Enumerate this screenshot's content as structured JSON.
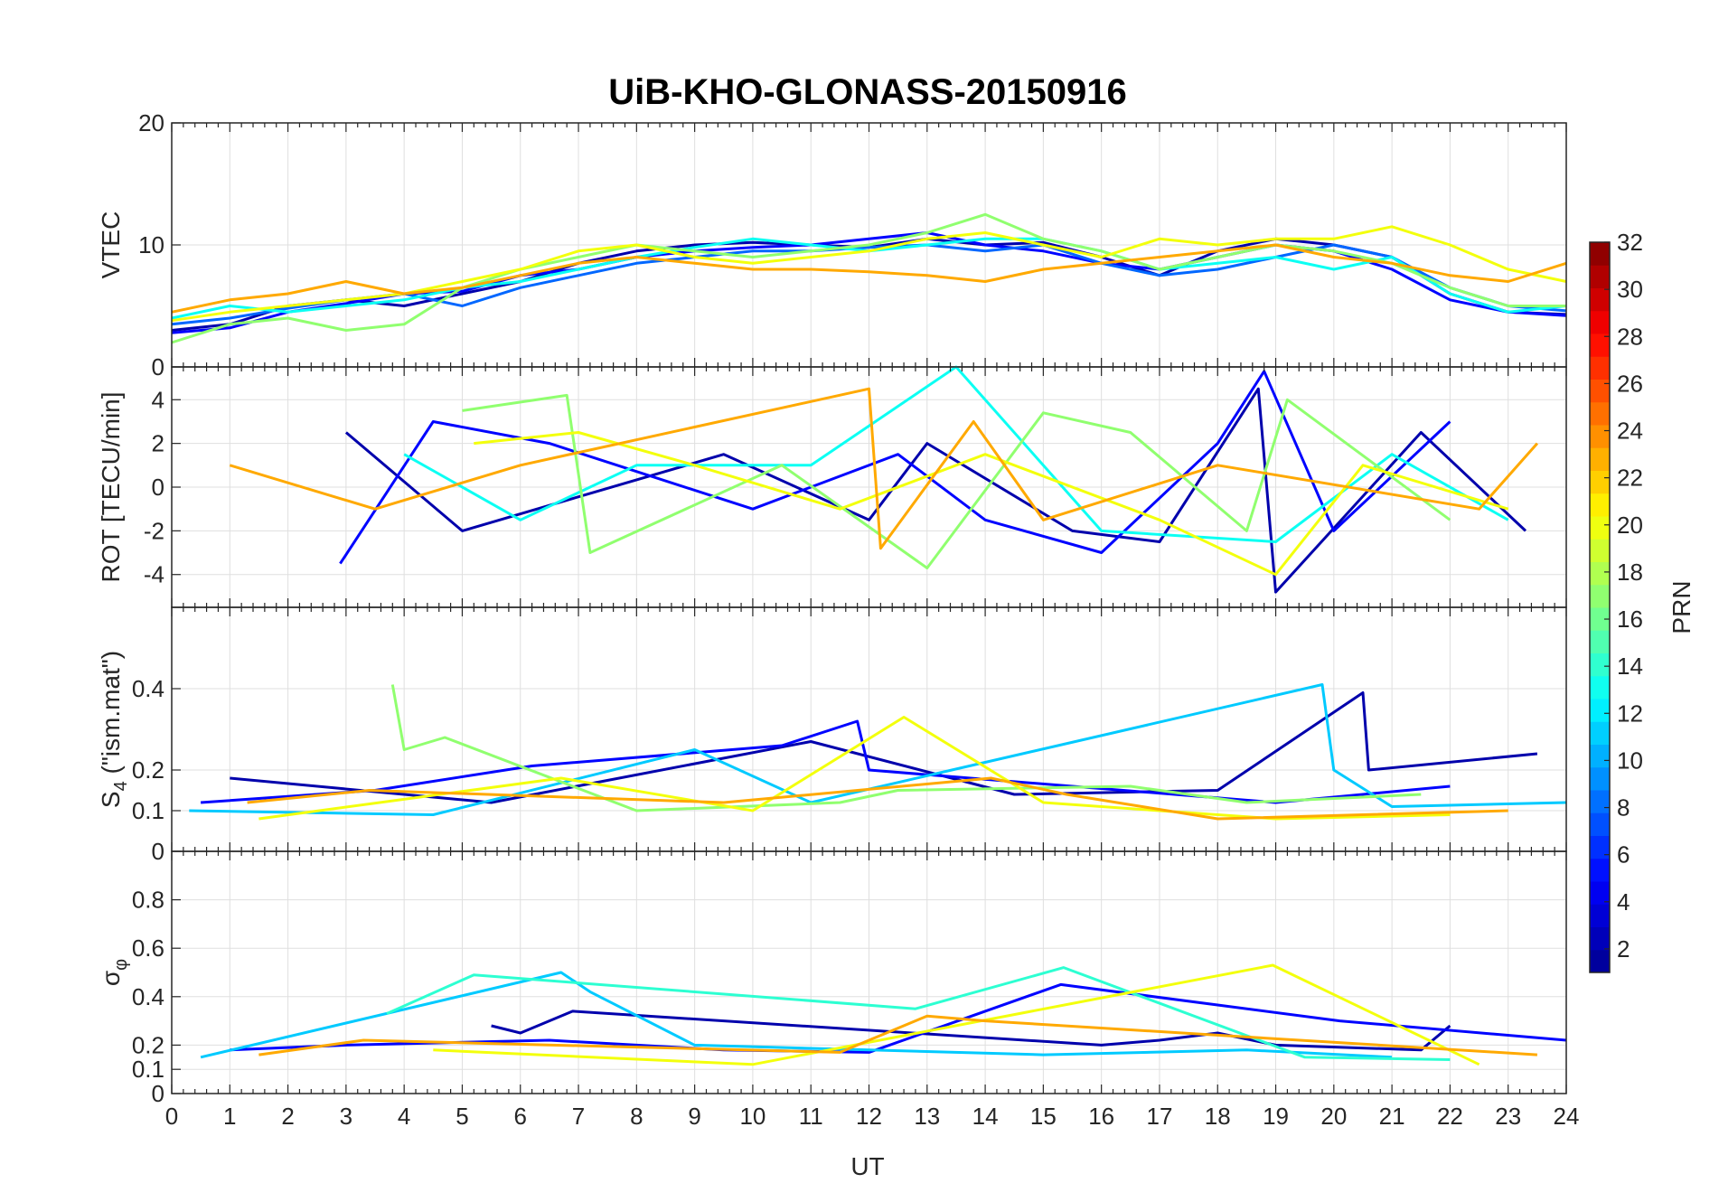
{
  "chart_data": {
    "type": "line",
    "title": "UiB-KHO-GLONASS-20150916",
    "xlabel": "UT",
    "xlim": [
      0,
      24
    ],
    "x_ticks": [
      "0",
      "1",
      "2",
      "3",
      "4",
      "5",
      "6",
      "7",
      "8",
      "9",
      "10",
      "11",
      "12",
      "13",
      "14",
      "15",
      "16",
      "17",
      "18",
      "19",
      "20",
      "21",
      "22",
      "23",
      "24"
    ],
    "grid": true,
    "colorbar": {
      "label": "PRN",
      "range": [
        1,
        32
      ],
      "colormap": "jet",
      "tick_labels": [
        "2",
        "4",
        "6",
        "8",
        "10",
        "12",
        "14",
        "16",
        "18",
        "20",
        "22",
        "24",
        "26",
        "28",
        "30",
        "32"
      ],
      "colors": [
        "#00008f",
        "#0000ff",
        "#0080ff",
        "#00ffff",
        "#80ff80",
        "#ffff00",
        "#ff8000",
        "#ff0000",
        "#800000"
      ]
    },
    "panels": [
      {
        "id": "vtec",
        "ylabel": "VTEC",
        "ylim": [
          0,
          20
        ],
        "y_ticks": [
          "0",
          "10",
          "20"
        ],
        "series": [
          {
            "prn": 2,
            "x": [
              0,
              1,
              2,
              3,
              4,
              5,
              6,
              7,
              8,
              9,
              10,
              11,
              12,
              13,
              14,
              15,
              16,
              17,
              18,
              19,
              20,
              21,
              22,
              23,
              24
            ],
            "y": [
              3.0,
              3.5,
              5.0,
              5.5,
              5.0,
              6.0,
              7.0,
              8.5,
              9.5,
              10.0,
              10.2,
              10.0,
              9.8,
              10.5,
              10.0,
              10.2,
              9.0,
              7.5,
              9.5,
              10.5,
              10.0,
              9.0,
              6.0,
              4.5,
              4.3
            ]
          },
          {
            "prn": 5,
            "x": [
              0,
              1,
              2,
              3,
              4,
              5,
              6,
              7,
              8,
              9,
              10,
              11,
              12,
              13,
              14,
              15,
              16,
              17,
              18,
              19,
              20,
              21,
              22,
              23,
              24
            ],
            "y": [
              2.8,
              3.2,
              4.5,
              5.2,
              6.0,
              6.2,
              7.5,
              8.0,
              9.0,
              9.5,
              9.8,
              10.0,
              10.5,
              11.0,
              10.0,
              9.5,
              8.5,
              8.0,
              9.0,
              10.0,
              9.5,
              8.0,
              5.5,
              4.5,
              4.2
            ]
          },
          {
            "prn": 8,
            "x": [
              0,
              1,
              2,
              3,
              4,
              5,
              6,
              7,
              8,
              9,
              10,
              11,
              12,
              13,
              14,
              15,
              16,
              17,
              18,
              19,
              20,
              21,
              22,
              23,
              24
            ],
            "y": [
              3.5,
              4.0,
              4.8,
              5.5,
              6.0,
              5.0,
              6.5,
              7.5,
              8.5,
              9.0,
              9.5,
              9.5,
              9.8,
              10.0,
              9.5,
              10.0,
              8.5,
              7.5,
              8.0,
              9.0,
              10.0,
              9.0,
              6.5,
              5.0,
              4.6
            ]
          },
          {
            "prn": 13,
            "x": [
              0,
              1,
              2,
              3,
              4,
              5,
              6,
              7,
              8,
              9,
              10,
              11,
              12,
              13,
              14,
              15,
              16,
              17,
              18,
              19,
              20,
              21,
              22,
              23,
              24
            ],
            "y": [
              4.0,
              5.0,
              4.5,
              5.0,
              5.5,
              6.5,
              7.0,
              8.0,
              9.0,
              9.8,
              10.5,
              10.0,
              9.5,
              10.0,
              10.5,
              10.5,
              9.5,
              8.0,
              8.5,
              9.0,
              8.0,
              9.0,
              6.0,
              4.5,
              5.0
            ]
          },
          {
            "prn": 17,
            "x": [
              0,
              1,
              2,
              3,
              4,
              5,
              6,
              7,
              8,
              9,
              10,
              11,
              12,
              13,
              14,
              15,
              16,
              17,
              18,
              19,
              20,
              21,
              22,
              23,
              24
            ],
            "y": [
              2.0,
              3.5,
              4.0,
              3.0,
              3.5,
              6.5,
              8.0,
              9.0,
              10.0,
              9.5,
              9.0,
              9.5,
              10.0,
              11.0,
              12.5,
              10.5,
              9.5,
              8.0,
              9.0,
              10.0,
              9.5,
              8.5,
              6.5,
              5.0,
              5.0
            ]
          },
          {
            "prn": 20,
            "x": [
              0,
              1,
              2,
              3,
              4,
              5,
              6,
              7,
              8,
              9,
              10,
              11,
              12,
              13,
              14,
              15,
              16,
              17,
              18,
              19,
              20,
              21,
              22,
              23,
              24
            ],
            "y": [
              3.8,
              4.5,
              5.0,
              5.5,
              6.0,
              7.0,
              8.0,
              9.5,
              10.0,
              9.0,
              8.5,
              9.0,
              9.5,
              10.5,
              11.0,
              10.0,
              9.0,
              10.5,
              10.0,
              10.5,
              10.5,
              11.5,
              10.0,
              8.0,
              7.0
            ]
          },
          {
            "prn": 23,
            "x": [
              0,
              1,
              2,
              3,
              4,
              5,
              6,
              7,
              8,
              9,
              10,
              11,
              12,
              13,
              14,
              15,
              16,
              17,
              18,
              19,
              20,
              21,
              22,
              23,
              24
            ],
            "y": [
              4.5,
              5.5,
              6.0,
              7.0,
              6.0,
              6.5,
              7.5,
              8.5,
              9.0,
              8.5,
              8.0,
              8.0,
              7.8,
              7.5,
              7.0,
              8.0,
              8.5,
              9.0,
              9.5,
              10.0,
              9.0,
              8.5,
              7.5,
              7.0,
              8.5
            ]
          }
        ]
      },
      {
        "id": "rot",
        "ylabel": "ROT [TECU/min]",
        "ylim": [
          -5.5,
          5.5
        ],
        "y_ticks": [
          "-4",
          "-2",
          "0",
          "2",
          "4"
        ],
        "series": [
          {
            "prn": 2,
            "x": [
              3.0,
              5.0,
              9.5,
              12.0,
              13.0,
              15.5,
              17.0,
              18.7,
              19.0,
              21.5,
              23.3
            ],
            "y": [
              2.5,
              -2.0,
              1.5,
              -1.5,
              2.0,
              -2.0,
              -2.5,
              4.5,
              -4.8,
              2.5,
              -2.0
            ]
          },
          {
            "prn": 5,
            "x": [
              2.9,
              4.5,
              6.5,
              10.0,
              12.5,
              14.0,
              16.0,
              18.0,
              18.8,
              20.0,
              22.0
            ],
            "y": [
              -3.5,
              3.0,
              2.0,
              -1.0,
              1.5,
              -1.5,
              -3.0,
              2.0,
              5.3,
              -2.0,
              3.0
            ]
          },
          {
            "prn": 13,
            "x": [
              4.0,
              6.0,
              8.0,
              11.0,
              13.5,
              16.0,
              19.0,
              21.0,
              23.0
            ],
            "y": [
              1.5,
              -1.5,
              1.0,
              1.0,
              5.5,
              -2.0,
              -2.5,
              1.5,
              -1.5
            ]
          },
          {
            "prn": 17,
            "x": [
              5.0,
              6.8,
              7.2,
              10.5,
              13.0,
              15.0,
              16.5,
              18.5,
              19.2,
              22.0
            ],
            "y": [
              3.5,
              4.2,
              -3.0,
              1.0,
              -3.7,
              3.4,
              2.5,
              -2.0,
              4.0,
              -1.5
            ]
          },
          {
            "prn": 20,
            "x": [
              5.2,
              7.0,
              9.0,
              11.5,
              14.0,
              17.0,
              19.0,
              20.5,
              23.0
            ],
            "y": [
              2.0,
              2.5,
              1.0,
              -1.0,
              1.5,
              -1.5,
              -4.0,
              1.0,
              -1.0
            ]
          },
          {
            "prn": 23,
            "x": [
              1.0,
              3.5,
              6.0,
              12.0,
              12.2,
              13.8,
              15.0,
              18.0,
              22.5,
              23.5
            ],
            "y": [
              1.0,
              -1.0,
              1.0,
              4.5,
              -2.8,
              3.0,
              -1.5,
              1.0,
              -1.0,
              2.0
            ]
          }
        ]
      },
      {
        "id": "s4",
        "ylabel": "S4 (\"ism.mat\")",
        "ylabel_main": "S",
        "ylabel_sub": "4",
        "ylabel_rest": " (\"ism.mat\")",
        "ylim": [
          0,
          0.6
        ],
        "y_ticks": [
          "0",
          "0.1",
          "0.2",
          "0.4"
        ],
        "series": [
          {
            "prn": 2,
            "x": [
              1.0,
              5.5,
              11.0,
              14.5,
              18.0,
              20.5,
              20.6,
              23.5
            ],
            "y": [
              0.18,
              0.12,
              0.27,
              0.14,
              0.15,
              0.39,
              0.2,
              0.24
            ]
          },
          {
            "prn": 5,
            "x": [
              0.5,
              3.5,
              6.2,
              10.5,
              11.8,
              12.0,
              19.0,
              22.0
            ],
            "y": [
              0.12,
              0.15,
              0.21,
              0.26,
              0.32,
              0.2,
              0.12,
              0.16
            ]
          },
          {
            "prn": 11,
            "x": [
              0.3,
              4.5,
              9.0,
              11.0,
              19.8,
              20.0,
              21.0,
              24.0
            ],
            "y": [
              0.1,
              0.09,
              0.25,
              0.12,
              0.41,
              0.2,
              0.11,
              0.12
            ]
          },
          {
            "prn": 17,
            "x": [
              3.8,
              4.0,
              4.7,
              8.0,
              11.5,
              12.5,
              16.5,
              18.5,
              21.5
            ],
            "y": [
              0.41,
              0.25,
              0.28,
              0.1,
              0.12,
              0.15,
              0.16,
              0.12,
              0.14
            ]
          },
          {
            "prn": 20,
            "x": [
              1.5,
              6.7,
              10.0,
              12.6,
              15.0,
              19.0,
              22.0
            ],
            "y": [
              0.08,
              0.18,
              0.1,
              0.33,
              0.12,
              0.08,
              0.09
            ]
          },
          {
            "prn": 23,
            "x": [
              1.3,
              3.4,
              9.5,
              14.1,
              15.4,
              18.0,
              23.0
            ],
            "y": [
              0.12,
              0.15,
              0.12,
              0.18,
              0.14,
              0.08,
              0.1
            ]
          }
        ]
      },
      {
        "id": "sigma_phi",
        "ylabel": "σφ",
        "ylabel_main": "σ",
        "ylabel_sub": "φ",
        "ylim": [
          0,
          1
        ],
        "y_ticks": [
          "0",
          "0.1",
          "0.2",
          "0.4",
          "0.6",
          "0.8"
        ],
        "series": [
          {
            "prn": 2,
            "x": [
              5.5,
              6.0,
              6.9,
              16.0,
              17.0,
              18.0,
              19.0,
              21.5,
              22.0
            ],
            "y": [
              0.28,
              0.25,
              0.34,
              0.2,
              0.22,
              0.25,
              0.2,
              0.18,
              0.28
            ]
          },
          {
            "prn": 5,
            "x": [
              1.0,
              3.0,
              6.5,
              9.5,
              12.0,
              15.3,
              20.1,
              24.0
            ],
            "y": [
              0.18,
              0.2,
              0.22,
              0.18,
              0.17,
              0.45,
              0.3,
              0.22
            ]
          },
          {
            "prn": 11,
            "x": [
              0.5,
              6.7,
              7.2,
              9.0,
              15.0,
              18.5,
              21.0
            ],
            "y": [
              0.15,
              0.5,
              0.42,
              0.2,
              0.16,
              0.18,
              0.15
            ]
          },
          {
            "prn": 14,
            "x": [
              3.7,
              5.2,
              12.8,
              15.35,
              19.5,
              22.0
            ],
            "y": [
              0.33,
              0.49,
              0.35,
              0.52,
              0.15,
              0.14
            ]
          },
          {
            "prn": 20,
            "x": [
              4.5,
              10.0,
              18.95,
              22.5
            ],
            "y": [
              0.18,
              0.12,
              0.53,
              0.12
            ]
          },
          {
            "prn": 23,
            "x": [
              1.5,
              3.3,
              11.5,
              13.0,
              14.0,
              23.5
            ],
            "y": [
              0.16,
              0.22,
              0.17,
              0.32,
              0.3,
              0.16
            ]
          }
        ]
      }
    ]
  }
}
